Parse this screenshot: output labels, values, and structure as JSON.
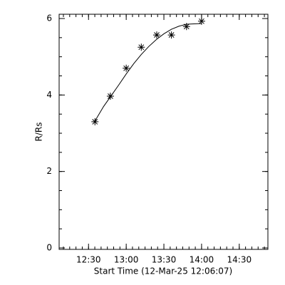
{
  "chart_data": {
    "type": "scatter",
    "xlabel": "Start Time (12-Mar-25 12:06:07)",
    "ylabel": "R/Rs",
    "xlim": [
      12.11,
      14.88
    ],
    "xticks": [
      {
        "value": 12.5,
        "label": "12:30"
      },
      {
        "value": 13.0,
        "label": "13:00"
      },
      {
        "value": 13.5,
        "label": "13:30"
      },
      {
        "value": 14.0,
        "label": "14:00"
      },
      {
        "value": 14.5,
        "label": "14:30"
      }
    ],
    "ylim": [
      0,
      6
    ],
    "yticks": [
      0,
      2,
      4,
      6
    ],
    "series": [
      {
        "type": "scatter",
        "color": "#000000",
        "x": [
          12.585,
          12.79,
          13.0,
          13.2,
          13.405,
          13.6,
          13.8,
          14.0
        ],
        "values": [
          3.3,
          3.97,
          4.7,
          5.25,
          5.57,
          5.57,
          5.79,
          5.93
        ]
      },
      {
        "type": "line",
        "color": "#000000",
        "x": [
          12.585,
          12.7,
          12.8,
          12.9,
          13.0,
          13.1,
          13.2,
          13.3,
          13.4,
          13.5,
          13.6,
          13.7,
          13.8,
          13.9,
          14.0
        ],
        "values": [
          3.32,
          3.7,
          3.98,
          4.26,
          4.55,
          4.82,
          5.06,
          5.27,
          5.45,
          5.6,
          5.72,
          5.8,
          5.85,
          5.86,
          5.87
        ]
      }
    ]
  }
}
